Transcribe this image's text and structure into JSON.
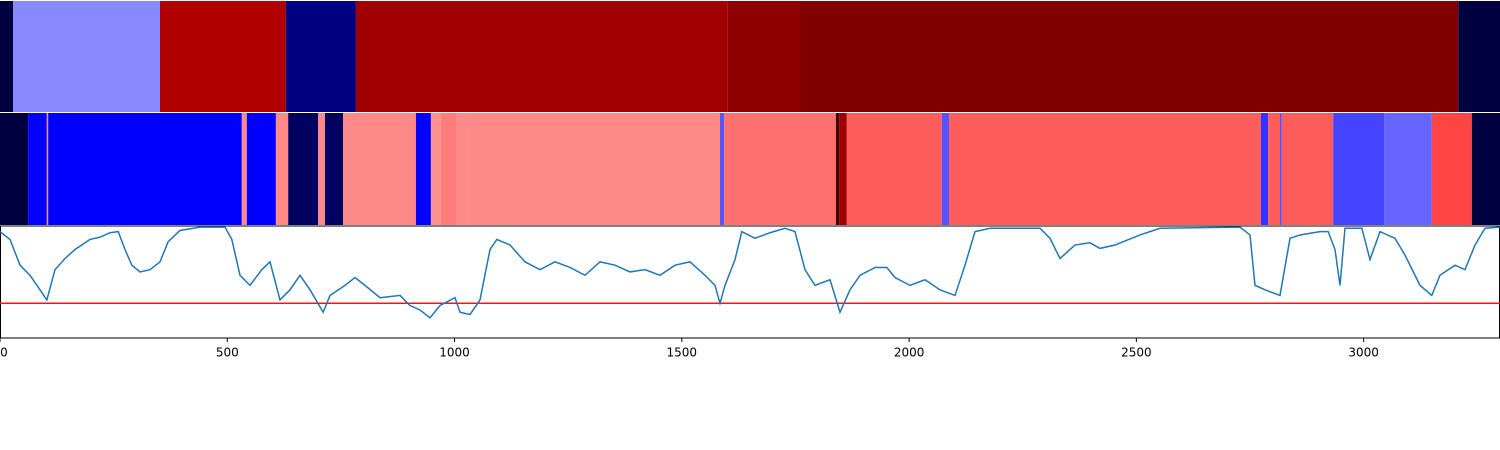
{
  "chart_data": {
    "type": "line",
    "xlim": [
      0,
      3300
    ],
    "xticks": [
      0,
      500,
      1000,
      1500,
      2000,
      2500,
      3000
    ],
    "ylim": [
      0,
      1
    ],
    "band_rows": [
      [
        {
          "start": 0,
          "end": 29,
          "color": "#000040"
        },
        {
          "start": 29,
          "end": 352,
          "color": "#8888ff"
        },
        {
          "start": 352,
          "end": 629,
          "color": "#b00000"
        },
        {
          "start": 629,
          "end": 783,
          "color": "#000080"
        },
        {
          "start": 783,
          "end": 1600,
          "color": "#a00000"
        },
        {
          "start": 1600,
          "end": 1760,
          "color": "#900000"
        },
        {
          "start": 1760,
          "end": 3208,
          "color": "#800000"
        },
        {
          "start": 3208,
          "end": 3300,
          "color": "#000040"
        }
      ],
      [
        {
          "start": 0,
          "end": 62,
          "color": "#000040"
        },
        {
          "start": 62,
          "end": 103,
          "color": "#0000ff"
        },
        {
          "start": 103,
          "end": 106,
          "color": "#ff8888"
        },
        {
          "start": 106,
          "end": 532,
          "color": "#0000ff"
        },
        {
          "start": 532,
          "end": 543,
          "color": "#ff8888"
        },
        {
          "start": 543,
          "end": 607,
          "color": "#0000ff"
        },
        {
          "start": 607,
          "end": 634,
          "color": "#ff8888"
        },
        {
          "start": 634,
          "end": 700,
          "color": "#000060"
        },
        {
          "start": 700,
          "end": 715,
          "color": "#ff8888"
        },
        {
          "start": 715,
          "end": 755,
          "color": "#000060"
        },
        {
          "start": 755,
          "end": 915,
          "color": "#ff8888"
        },
        {
          "start": 915,
          "end": 948,
          "color": "#0000ff"
        },
        {
          "start": 948,
          "end": 970,
          "color": "#ff9090"
        },
        {
          "start": 970,
          "end": 1005,
          "color": "#ff7c7c"
        },
        {
          "start": 1005,
          "end": 1032,
          "color": "#ff8a8a"
        },
        {
          "start": 1032,
          "end": 1584,
          "color": "#ff8888"
        },
        {
          "start": 1584,
          "end": 1593,
          "color": "#5555ff"
        },
        {
          "start": 1593,
          "end": 1839,
          "color": "#ff7070"
        },
        {
          "start": 1839,
          "end": 1846,
          "color": "#400000"
        },
        {
          "start": 1846,
          "end": 1863,
          "color": "#a00000"
        },
        {
          "start": 1863,
          "end": 2072,
          "color": "#ff5c5c"
        },
        {
          "start": 2072,
          "end": 2088,
          "color": "#5555ff"
        },
        {
          "start": 2088,
          "end": 2774,
          "color": "#ff5c5c"
        },
        {
          "start": 2774,
          "end": 2790,
          "color": "#3333ff"
        },
        {
          "start": 2790,
          "end": 2816,
          "color": "#ff5c5c"
        },
        {
          "start": 2816,
          "end": 2820,
          "color": "#5555ff"
        },
        {
          "start": 2820,
          "end": 2933,
          "color": "#ff5c5c"
        },
        {
          "start": 2933,
          "end": 3045,
          "color": "#4444ff"
        },
        {
          "start": 3045,
          "end": 3150,
          "color": "#6666ff"
        },
        {
          "start": 3150,
          "end": 3238,
          "color": "#ff4444"
        },
        {
          "start": 3238,
          "end": 3300,
          "color": "#000040"
        }
      ]
    ],
    "series": [
      {
        "color": "#1f77b4",
        "x": [
          0,
          22,
          44,
          66,
          88,
          103,
          121,
          143,
          165,
          198,
          220,
          242,
          260,
          275,
          290,
          308,
          330,
          352,
          370,
          396,
          440,
          495,
          510,
          528,
          550,
          576,
          594,
          616,
          638,
          660,
          682,
          711,
          726,
          759,
          781,
          803,
          836,
          880,
          902,
          924,
          946,
          968,
          1001,
          1012,
          1034,
          1056,
          1078,
          1093,
          1122,
          1155,
          1188,
          1221,
          1254,
          1287,
          1320,
          1353,
          1386,
          1419,
          1452,
          1485,
          1518,
          1551,
          1573,
          1584,
          1595,
          1617,
          1632,
          1661,
          1694,
          1727,
          1749,
          1771,
          1793,
          1826,
          1848,
          1870,
          1892,
          1925,
          1951,
          1969,
          2002,
          2035,
          2068,
          2101,
          2123,
          2145,
          2178,
          2288,
          2310,
          2332,
          2365,
          2398,
          2420,
          2453,
          2508,
          2552,
          2728,
          2750,
          2761,
          2783,
          2816,
          2838,
          2860,
          2904,
          2922,
          2937,
          2948,
          2959,
          2996,
          3014,
          3036,
          3069,
          3091,
          3124,
          3150,
          3168,
          3201,
          3223,
          3245,
          3267,
          3300
        ],
        "values": [
          0.95,
          0.88,
          0.65,
          0.56,
          0.43,
          0.34,
          0.61,
          0.71,
          0.79,
          0.88,
          0.9,
          0.94,
          0.95,
          0.79,
          0.65,
          0.59,
          0.61,
          0.68,
          0.86,
          0.96,
          0.99,
          0.99,
          0.88,
          0.56,
          0.47,
          0.61,
          0.68,
          0.34,
          0.43,
          0.56,
          0.43,
          0.23,
          0.38,
          0.47,
          0.54,
          0.47,
          0.36,
          0.38,
          0.29,
          0.25,
          0.18,
          0.29,
          0.36,
          0.23,
          0.21,
          0.34,
          0.79,
          0.88,
          0.83,
          0.68,
          0.61,
          0.68,
          0.63,
          0.56,
          0.68,
          0.65,
          0.59,
          0.61,
          0.56,
          0.65,
          0.68,
          0.56,
          0.47,
          0.31,
          0.47,
          0.7,
          0.95,
          0.89,
          0.94,
          0.98,
          0.95,
          0.61,
          0.47,
          0.52,
          0.23,
          0.43,
          0.56,
          0.63,
          0.63,
          0.54,
          0.47,
          0.52,
          0.43,
          0.38,
          0.65,
          0.95,
          0.98,
          0.98,
          0.89,
          0.71,
          0.83,
          0.85,
          0.8,
          0.83,
          0.92,
          0.98,
          0.99,
          0.92,
          0.47,
          0.43,
          0.38,
          0.89,
          0.92,
          0.95,
          0.95,
          0.79,
          0.47,
          0.98,
          0.98,
          0.7,
          0.95,
          0.89,
          0.74,
          0.47,
          0.38,
          0.56,
          0.65,
          0.61,
          0.83,
          0.98,
          0.99
        ]
      }
    ],
    "threshold": {
      "value": 0.31,
      "color": "#e41a1c"
    }
  }
}
